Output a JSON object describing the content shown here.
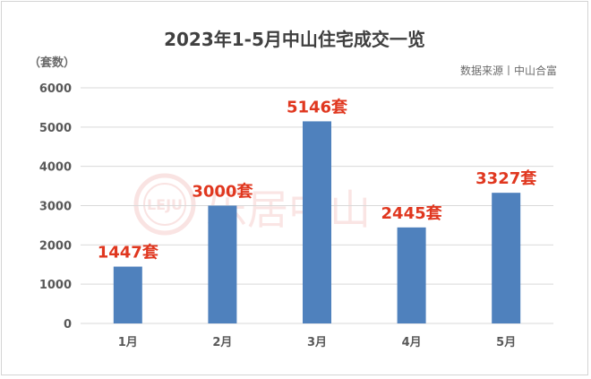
{
  "title": "2023年1-5月中山住宅成交一览",
  "unit_label": "（套数）",
  "source_note": "数据来源丨中山合富",
  "watermark": {
    "text": "乐居中山",
    "badge": "LEJU"
  },
  "chart_data": {
    "type": "bar",
    "title": "2023年1-5月中山住宅成交一览",
    "ylabel": "（套数）",
    "categories": [
      "1月",
      "2月",
      "3月",
      "4月",
      "5月"
    ],
    "values": [
      1447,
      3000,
      5146,
      2445,
      3327
    ],
    "data_labels": [
      "1447套",
      "3000套",
      "5146套",
      "2445套",
      "3327套"
    ],
    "ylim": [
      0,
      6000
    ],
    "yticks": [
      0,
      1000,
      2000,
      3000,
      4000,
      5000,
      6000
    ],
    "grid": true,
    "bar_color": "#4f81bd",
    "label_color": "#e0371f"
  }
}
